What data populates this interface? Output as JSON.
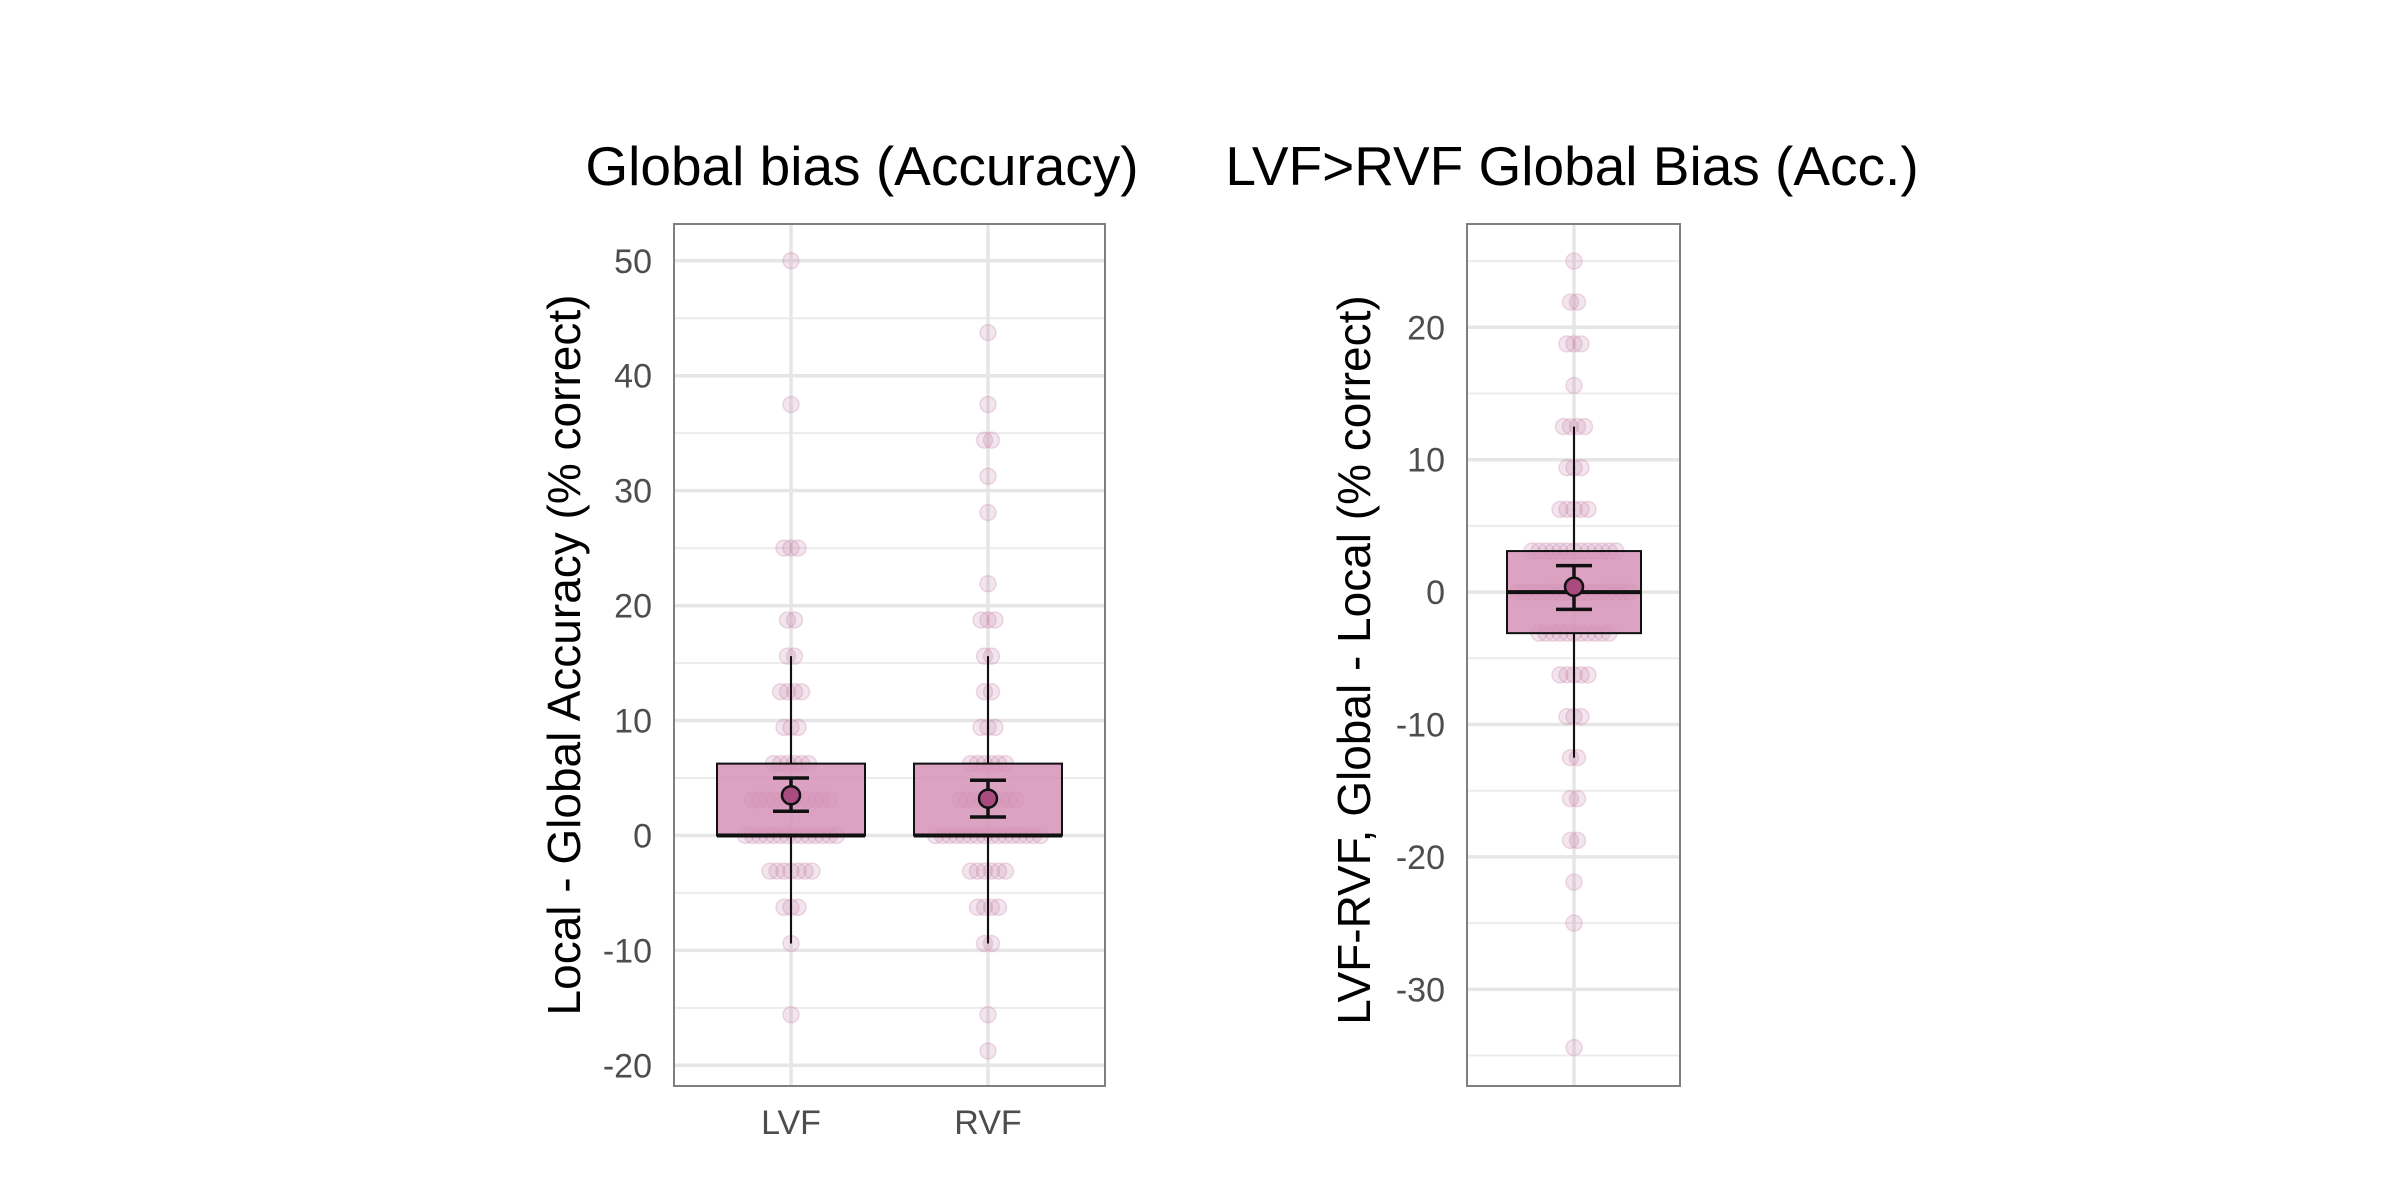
{
  "colors": {
    "point": "#c987ac",
    "box_fill": "#d592b6",
    "mean_fill": "#a94b7f",
    "line": "#111111"
  },
  "chart_data": [
    {
      "type": "box",
      "title": "Global bias (Accuracy)",
      "xlabel": "",
      "ylabel": "Local - Global Accuracy (% correct)",
      "ylim": [
        -21.8,
        53.2
      ],
      "yticks": [
        50,
        40,
        30,
        20,
        10,
        0,
        -10,
        -20
      ],
      "grid": true,
      "categories": [
        "LVF",
        "RVF"
      ],
      "boxes": [
        {
          "category": "LVF",
          "q1": 0,
          "median": 0,
          "q3": 6.25,
          "whisker_low": -9.4,
          "whisker_high": 15.6,
          "mean": 3.5,
          "ci_low": 2.1,
          "ci_high": 5.0
        },
        {
          "category": "RVF",
          "q1": 0,
          "median": 0,
          "q3": 6.25,
          "whisker_low": -9.4,
          "whisker_high": 15.6,
          "mean": 3.2,
          "ci_low": 1.6,
          "ci_high": 4.8
        }
      ],
      "points": [
        {
          "category": "LVF",
          "values": [
            50,
            37.5,
            25,
            25,
            25,
            18.75,
            18.75,
            15.6,
            15.6,
            12.5,
            12.5,
            12.5,
            12.5,
            9.4,
            9.4,
            9.4,
            6.25,
            6.25,
            6.25,
            6.25,
            6.25,
            6.25,
            3.1,
            3.1,
            3.1,
            3.1,
            3.1,
            3.1,
            3.1,
            3.1,
            3.1,
            3.1,
            3.1,
            3.1,
            0,
            0,
            0,
            0,
            0,
            0,
            0,
            0,
            0,
            0,
            0,
            0,
            0,
            0,
            -3.1,
            -3.1,
            -3.1,
            -3.1,
            -3.1,
            -3.1,
            -3.1,
            -6.25,
            -6.25,
            -6.25,
            -9.4,
            -15.6
          ]
        },
        {
          "category": "RVF",
          "values": [
            43.75,
            37.5,
            34.4,
            34.4,
            31.25,
            28.1,
            21.9,
            18.75,
            18.75,
            18.75,
            15.6,
            15.6,
            12.5,
            12.5,
            9.4,
            9.4,
            9.4,
            6.25,
            6.25,
            6.25,
            6.25,
            6.25,
            6.25,
            3.1,
            3.1,
            3.1,
            3.1,
            3.1,
            3.1,
            3.1,
            3.1,
            3.1,
            0,
            0,
            0,
            0,
            0,
            0,
            0,
            0,
            0,
            0,
            0,
            0,
            0,
            0,
            0,
            0,
            -3.1,
            -3.1,
            -3.1,
            -3.1,
            -3.1,
            -3.1,
            -6.25,
            -6.25,
            -6.25,
            -6.25,
            -9.4,
            -9.4,
            -15.6,
            -18.75
          ]
        }
      ]
    },
    {
      "type": "box",
      "title": "LVF>RVF Global Bias (Acc.)",
      "xlabel": "",
      "ylabel": "LVF-RVF, Global - Local (% correct)",
      "ylim": [
        -37.3,
        27.8
      ],
      "yticks": [
        20,
        10,
        0,
        -10,
        -20,
        -30
      ],
      "grid": true,
      "categories": [
        ""
      ],
      "boxes": [
        {
          "category": "",
          "q1": -3.1,
          "median": 0,
          "q3": 3.1,
          "whisker_low": -12.5,
          "whisker_high": 12.5,
          "mean": 0.4,
          "ci_low": -1.3,
          "ci_high": 2.0
        }
      ],
      "points": [
        {
          "category": "",
          "values": [
            25,
            21.9,
            21.9,
            18.75,
            18.75,
            18.75,
            15.6,
            12.5,
            12.5,
            12.5,
            12.5,
            9.4,
            9.4,
            9.4,
            6.25,
            6.25,
            6.25,
            6.25,
            6.25,
            3.1,
            3.1,
            3.1,
            3.1,
            3.1,
            3.1,
            3.1,
            3.1,
            3.1,
            3.1,
            3.1,
            3.1,
            3.1,
            0,
            0,
            0,
            0,
            0,
            0,
            0,
            0,
            0,
            0,
            0,
            0,
            0,
            0,
            0,
            0,
            0,
            -3.1,
            -3.1,
            -3.1,
            -3.1,
            -3.1,
            -3.1,
            -3.1,
            -3.1,
            -3.1,
            -3.1,
            -3.1,
            -6.25,
            -6.25,
            -6.25,
            -6.25,
            -6.25,
            -9.4,
            -9.4,
            -9.4,
            -12.5,
            -12.5,
            -15.6,
            -15.6,
            -18.75,
            -18.75,
            -21.9,
            -25,
            -34.4
          ]
        }
      ]
    }
  ]
}
